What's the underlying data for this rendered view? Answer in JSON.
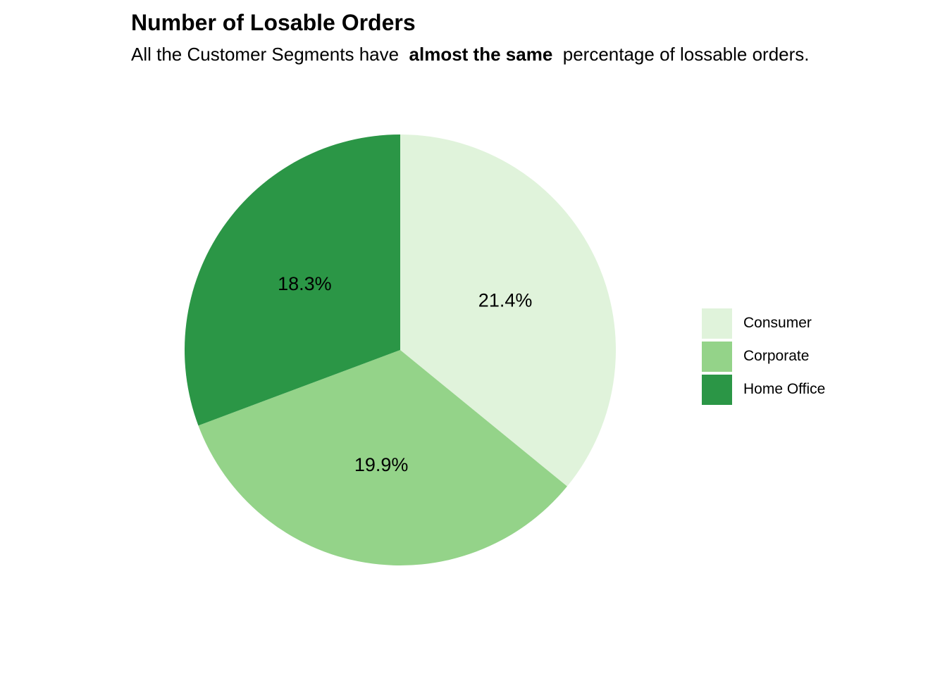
{
  "chart_data": {
    "type": "pie",
    "title": "Number of Losable Orders",
    "subtitle": {
      "before": "All the Customer Segments have ",
      "emphasis": "almost the same",
      "after": " percentage of lossable orders."
    },
    "slices": [
      {
        "name": "Consumer",
        "label": "21.4%",
        "value": 21.4,
        "color": "#e0f3db"
      },
      {
        "name": "Corporate",
        "label": "19.9%",
        "value": 19.9,
        "color": "#94d389"
      },
      {
        "name": "Home Office",
        "label": "18.3%",
        "value": 18.3,
        "color": "#2b9646"
      }
    ],
    "legend_position": "right"
  }
}
